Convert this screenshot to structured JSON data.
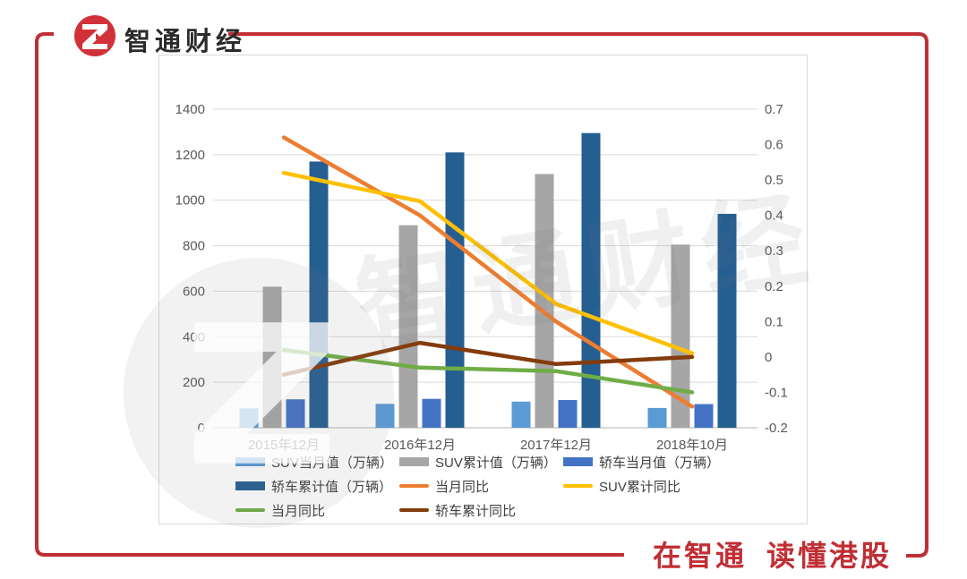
{
  "header": {
    "brand": "智通财经"
  },
  "footer": {
    "slogan_part1": "在智通",
    "slogan_part2": "读懂港股"
  },
  "watermark": {
    "text": "智通财经"
  },
  "colors": {
    "frame_red": "#C12E34",
    "logo_red": "#D13239",
    "axis_text": "#595959",
    "gridline": "#D9D9D9",
    "axis_line": "#B3B3B3"
  },
  "chart_data": {
    "type": "bar",
    "subtype": "combo-bar-line",
    "title": "",
    "categories": [
      "2015年12月",
      "2016年12月",
      "2017年12月",
      "2018年10月"
    ],
    "series": [
      {
        "name": "SUV当月值（万辆）",
        "kind": "bar",
        "axis": "left",
        "color": "#5B9BD5",
        "values": [
          85,
          105,
          115,
          87
        ]
      },
      {
        "name": "SUV累计值（万辆）",
        "kind": "bar",
        "axis": "left",
        "color": "#A6A6A6",
        "values": [
          620,
          890,
          1115,
          805
        ]
      },
      {
        "name": "轿车当月值（万辆）",
        "kind": "bar",
        "axis": "left",
        "color": "#4472C4",
        "values": [
          125,
          127,
          122,
          104
        ]
      },
      {
        "name": "轿车累计值（万辆）",
        "kind": "bar",
        "axis": "left",
        "color": "#255E91",
        "values": [
          1170,
          1210,
          1295,
          940
        ]
      },
      {
        "name": "当月同比",
        "kind": "line",
        "axis": "right",
        "color": "#ED7D31",
        "values": [
          0.62,
          0.4,
          0.1,
          -0.14
        ]
      },
      {
        "name": "SUV累计同比",
        "kind": "line",
        "axis": "right",
        "color": "#FFC000",
        "values": [
          0.52,
          0.44,
          0.15,
          0.01
        ]
      },
      {
        "name": "当月同比",
        "kind": "line",
        "axis": "right",
        "color": "#70AD47",
        "values": [
          0.02,
          -0.03,
          -0.04,
          -0.1
        ]
      },
      {
        "name": "轿车累计同比",
        "kind": "line",
        "axis": "right",
        "color": "#843C0C",
        "values": [
          -0.05,
          0.04,
          -0.02,
          0.0
        ]
      }
    ],
    "left_axis": {
      "min": 0,
      "max": 1400,
      "step": 200,
      "ticks": [
        "1400",
        "1200",
        "1000",
        "800",
        "600",
        "400",
        "200",
        "0"
      ]
    },
    "right_axis": {
      "min": -0.2,
      "max": 0.7,
      "step": 0.1,
      "ticks": [
        "0.7",
        "0.6",
        "0.5",
        "0.4",
        "0.3",
        "0.2",
        "0.1",
        "0",
        "-0.1",
        "-0.2"
      ]
    },
    "grid": true,
    "legend_position": "bottom"
  }
}
